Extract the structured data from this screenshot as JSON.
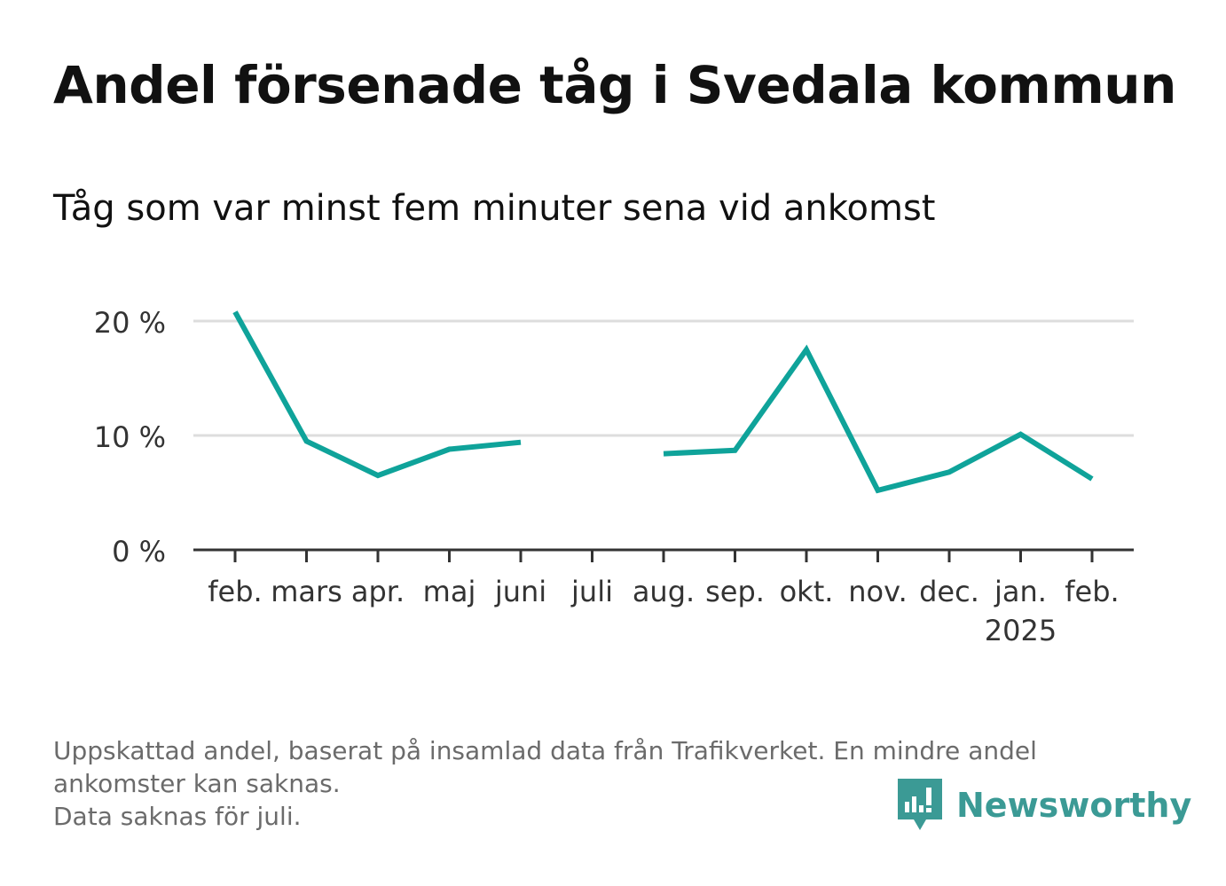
{
  "title": "Andel försenade tåg i Svedala kommun",
  "subtitle": "Tåg som var minst fem minuter sena vid ankomst",
  "footer": {
    "line1": "Uppskattad andel, baserat på insamlad data från Trafikverket. En mindre andel",
    "line2": "ankomster kan saknas.",
    "line3": "Data saknas för juli."
  },
  "brand": {
    "name": "Newsworthy",
    "icon": "newsworthy-logo-icon",
    "color": "#3b9a95"
  },
  "colors": {
    "line": "#0fa39a",
    "grid": "#dddddd",
    "axis": "#333333",
    "text": "#333333"
  },
  "chart_data": {
    "type": "line",
    "title": "Andel försenade tåg i Svedala kommun",
    "subtitle": "Tåg som var minst fem minuter sena vid ankomst",
    "categories": [
      "feb.",
      "mars",
      "apr.",
      "maj",
      "juni",
      "juli",
      "aug.",
      "sep.",
      "okt.",
      "nov.",
      "dec.",
      "jan.",
      "feb."
    ],
    "year_label": {
      "category_index": 11,
      "text": "2025"
    },
    "series": [
      {
        "values": [
          20.8,
          9.5,
          6.5,
          8.8,
          9.4,
          null,
          8.4,
          8.7,
          17.5,
          5.2,
          6.8,
          10.1,
          6.2
        ]
      }
    ],
    "yticks": [
      0,
      10,
      20
    ],
    "ytick_labels": [
      "0 %",
      "10 %",
      "20 %"
    ],
    "ylim": [
      0,
      20
    ],
    "grid": true,
    "legend": false,
    "xlabel": "",
    "ylabel": ""
  }
}
